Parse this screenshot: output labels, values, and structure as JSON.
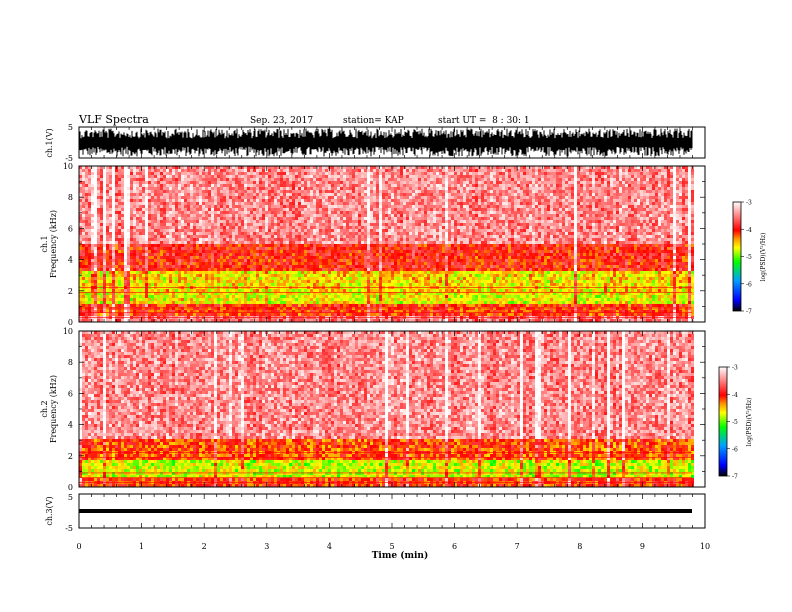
{
  "header": {
    "title": "VLF Spectra",
    "date": "Sep. 23, 2017",
    "station": "station= KAP",
    "start": "start UT =  8 : 30: 1"
  },
  "colors": {
    "colormap": [
      "#000000",
      "#0000ff",
      "#00a0ff",
      "#00ff00",
      "#ffff00",
      "#ff9900",
      "#ff0000",
      "#ffffff"
    ],
    "trace": "#000000",
    "axes": "#000000"
  },
  "chart_data": [
    {
      "type": "line",
      "panel": "ch1-waveform",
      "ylabel": "ch.1(V)",
      "ylim": [
        -5,
        5
      ],
      "ytick_labels": [
        "-5",
        "5"
      ],
      "xlim": [
        0,
        10
      ],
      "description_values": {
        "amplitude_range_V": [
          -4.5,
          4.5
        ]
      }
    },
    {
      "type": "heatmap",
      "panel": "ch1-spectrogram",
      "ylabel": "ch.1\nFrequency (kHz)",
      "ylabel_lines": [
        "ch.1",
        "Frequency (kHz)"
      ],
      "ylim": [
        0,
        10
      ],
      "ytick_labels": [
        "0",
        "2",
        "4",
        "6",
        "8",
        "10"
      ],
      "xlim": [
        0,
        10
      ],
      "colorbar": {
        "label": "log(PSD)(V²/Hz)",
        "range": [
          -7,
          -3
        ],
        "tick_labels": [
          "-3",
          "-4",
          "-5",
          "-6",
          "-7"
        ]
      },
      "bands": [
        {
          "freq_khz": [
            0,
            0.4
          ],
          "level": -3.7
        },
        {
          "freq_khz": [
            0.4,
            1.2
          ],
          "level": -4.2
        },
        {
          "freq_khz": [
            1.2,
            2.0
          ],
          "level": -4.8
        },
        {
          "freq_khz": [
            2.0,
            3.2
          ],
          "level": -4.7
        },
        {
          "freq_khz": [
            3.2,
            5.0
          ],
          "level": -4.1
        },
        {
          "freq_khz": [
            5.0,
            10.0
          ],
          "level": -3.6
        }
      ]
    },
    {
      "type": "heatmap",
      "panel": "ch2-spectrogram",
      "ylabel": "ch.2\nFrequency (kHz)",
      "ylabel_lines": [
        "ch.2",
        "Frequency (kHz)"
      ],
      "ylim": [
        0,
        10
      ],
      "ytick_labels": [
        "0",
        "2",
        "4",
        "6",
        "8",
        "10"
      ],
      "xlim": [
        0,
        10
      ],
      "colorbar": {
        "label": "log(PSD)(V²/Hz)",
        "range": [
          -7,
          -3
        ],
        "tick_labels": [
          "-3",
          "-4",
          "-5",
          "-6",
          "-7"
        ]
      },
      "bands": [
        {
          "freq_khz": [
            0,
            0.5
          ],
          "level": -4.2
        },
        {
          "freq_khz": [
            0.5,
            1.8
          ],
          "level": -4.9
        },
        {
          "freq_khz": [
            1.8,
            3.0
          ],
          "level": -4.3
        },
        {
          "freq_khz": [
            3.0,
            10.0
          ],
          "level": -3.6
        }
      ]
    },
    {
      "type": "line",
      "panel": "ch3-waveform",
      "ylabel": "ch.3(V)",
      "ylim": [
        -5,
        5
      ],
      "ytick_labels": [
        "-5",
        "5"
      ],
      "xlim": [
        0,
        10
      ],
      "description_values": {
        "level_V": 0
      }
    }
  ],
  "xaxis": {
    "label": "Time (min)",
    "tick_labels": [
      "0",
      "1",
      "2",
      "3",
      "4",
      "5",
      "6",
      "7",
      "8",
      "9",
      "10"
    ],
    "range": [
      0,
      10
    ]
  }
}
